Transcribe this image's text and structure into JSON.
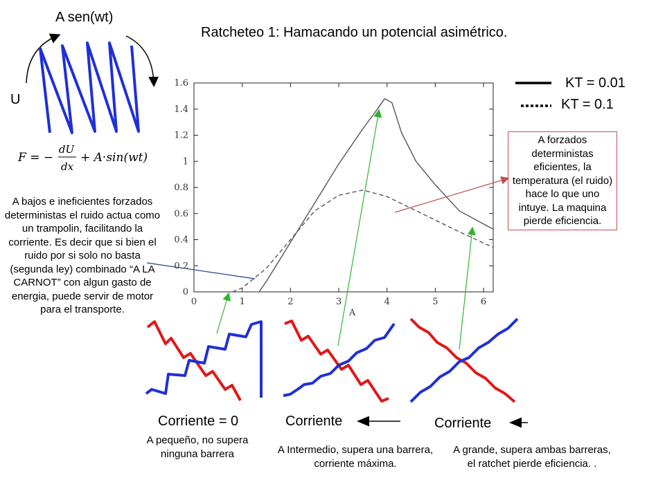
{
  "title": "Ratcheteo 1: Hamacando un potencial asimétrico.",
  "forcing_label": "A sen(wt)",
  "potential_label": "U",
  "formula": {
    "lhs": "F = −",
    "frac_num": "dU",
    "frac_den": "dx",
    "rhs": "+ A·sin(wt)"
  },
  "legend": {
    "solid": "KT = 0.01",
    "dotted": "KT = 0.1"
  },
  "notes": {
    "left": "A bajos e ineficientes forzados deterministas el ruido actua como un trampolin, facilitando la corriente. Es decir que si bien el ruido por si solo no basta (segunda ley) combinado “A LA CARNOT” con algun gasto de energia, puede servir de motor para el transporte.",
    "right": "A forzados deterministas eficientes, la temperatura (el ruido) hace lo que uno intuye. La maquina pierde eficiencia."
  },
  "panels": [
    {
      "label": "Corriente = 0",
      "caption": "A pequeño, no supera ninguna barrera"
    },
    {
      "label": "Corriente",
      "caption": "A Intermedio, supera una barrera, corriente máxima."
    },
    {
      "label": "Corriente",
      "caption": "A grande, supera ambas barreras, el ratchet pierde eficiencia. ."
    }
  ],
  "colors": {
    "blue": "#1f2fd8",
    "red": "#e01818",
    "green": "#2db52d",
    "arrow_red": "#c0504d",
    "navy": "#1f3b8a",
    "curve": "#555555"
  },
  "chart_data": {
    "type": "line",
    "xlabel": "A",
    "ylabel": "",
    "xlim": [
      0,
      6.2
    ],
    "ylim": [
      0,
      1.6
    ],
    "xticks": [
      0,
      1,
      2,
      3,
      4,
      5,
      6
    ],
    "yticks": [
      0,
      0.2,
      0.4,
      0.6,
      0.8,
      1,
      1.2,
      1.4,
      1.6
    ],
    "series": [
      {
        "name": "KT = 0.01",
        "style": "solid",
        "x": [
          1.35,
          1.5,
          2.0,
          2.5,
          3.0,
          3.5,
          3.8,
          3.95,
          4.1,
          4.3,
          4.6,
          5.0,
          5.5,
          6.2
        ],
        "y": [
          0.0,
          0.08,
          0.38,
          0.68,
          0.98,
          1.25,
          1.4,
          1.48,
          1.45,
          1.22,
          1.0,
          0.82,
          0.62,
          0.48
        ]
      },
      {
        "name": "KT = 0.1",
        "style": "dashed",
        "x": [
          0.8,
          1.0,
          1.5,
          2.0,
          2.5,
          3.0,
          3.5,
          4.0,
          4.5,
          5.0,
          5.5,
          6.2
        ],
        "y": [
          0.0,
          0.03,
          0.18,
          0.4,
          0.62,
          0.74,
          0.78,
          0.73,
          0.64,
          0.55,
          0.46,
          0.34
        ]
      }
    ]
  }
}
